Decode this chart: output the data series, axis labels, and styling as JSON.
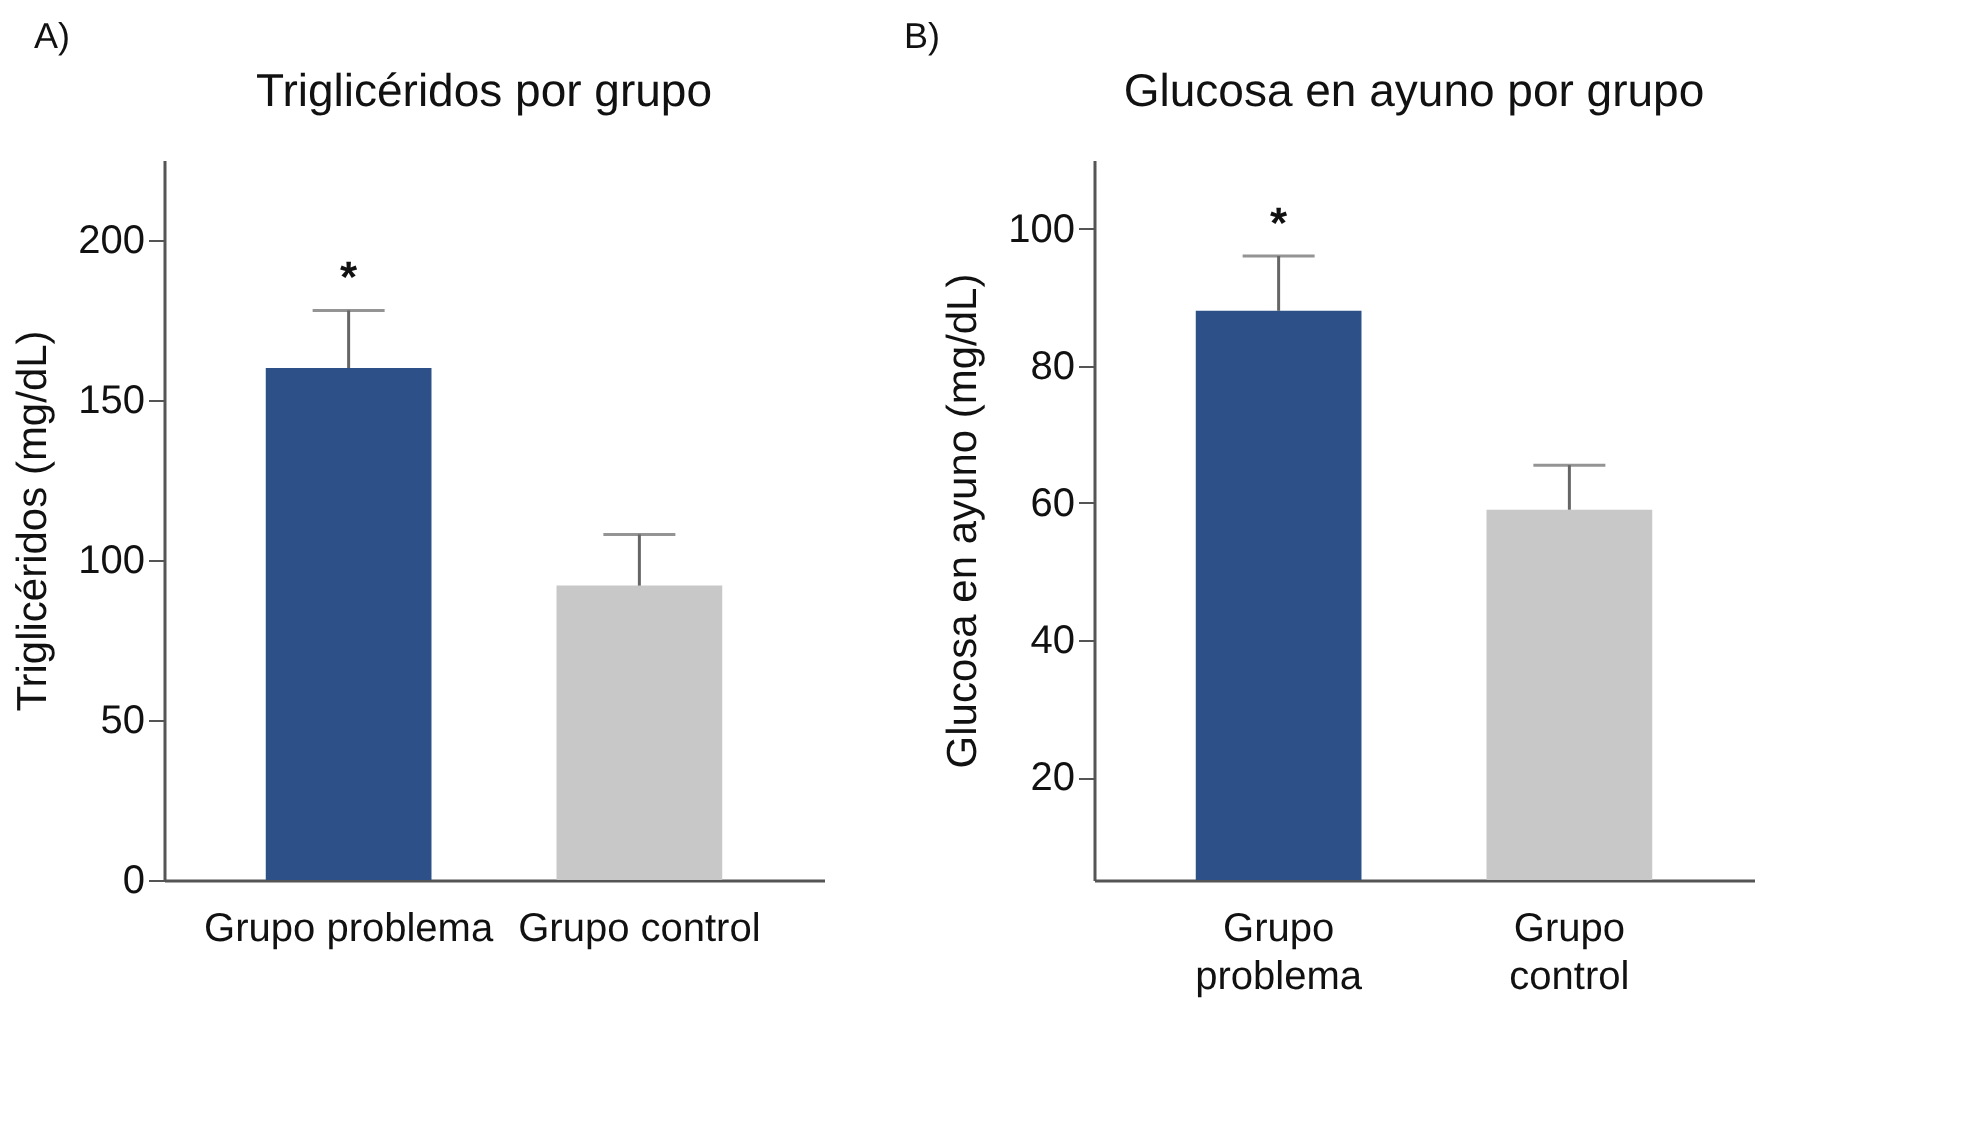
{
  "chart_data": [
    {
      "type": "bar",
      "title": "Triglicéridos por grupo",
      "ylabel": "Triglicéridos (mg/dL)",
      "categories": [
        "Grupo problema",
        "Grupo control"
      ],
      "values": [
        160,
        92
      ],
      "colors": [
        "#2d5088",
        "#c8c8c8"
      ],
      "errors": [
        18,
        16
      ],
      "ylim": [
        0,
        225
      ],
      "yticks": [
        0,
        50,
        100,
        150,
        200
      ],
      "grid": false,
      "annotations": [
        "A)",
        "*"
      ]
    },
    {
      "type": "bar",
      "title": "Glucosa en ayuno por grupo",
      "ylabel": "Glucosa en ayuno (mg/dL)",
      "categories": [
        "Grupo problema",
        "Grupo control"
      ],
      "values": [
        88,
        59
      ],
      "colors": [
        "#2d5088",
        "#c8c8c8"
      ],
      "errors": [
        8,
        6.5
      ],
      "ylim": [
        5,
        110
      ],
      "yticks": [
        20,
        40,
        60,
        80,
        100
      ],
      "grid": false,
      "annotations": [
        "B)",
        "*"
      ]
    }
  ]
}
